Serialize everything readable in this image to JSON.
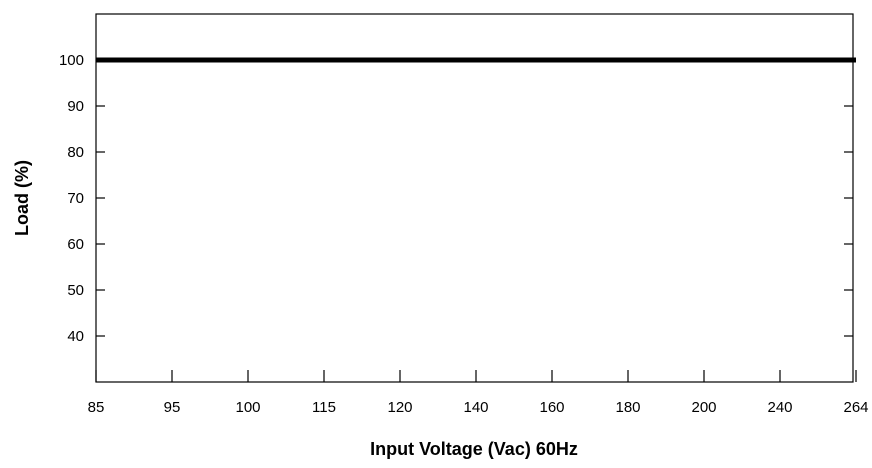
{
  "chart_data": {
    "type": "line",
    "title": "",
    "xlabel": "Input Voltage (Vac) 60Hz",
    "ylabel": "Load (%)",
    "x_tick_labels": [
      "85",
      "95",
      "100",
      "115",
      "120",
      "140",
      "160",
      "180",
      "200",
      "240",
      "264"
    ],
    "y_ticks": [
      40,
      50,
      60,
      70,
      80,
      90,
      100
    ],
    "ylim": [
      30,
      110
    ],
    "x_scale": "categorical",
    "grid": false,
    "legend": "none",
    "series": [
      {
        "x": [
          "85",
          "95",
          "100",
          "115",
          "120",
          "140",
          "160",
          "180",
          "200",
          "240",
          "264"
        ],
        "values": [
          100,
          100,
          100,
          100,
          100,
          100,
          100,
          100,
          100,
          100,
          100
        ],
        "color": "#000000"
      }
    ]
  }
}
